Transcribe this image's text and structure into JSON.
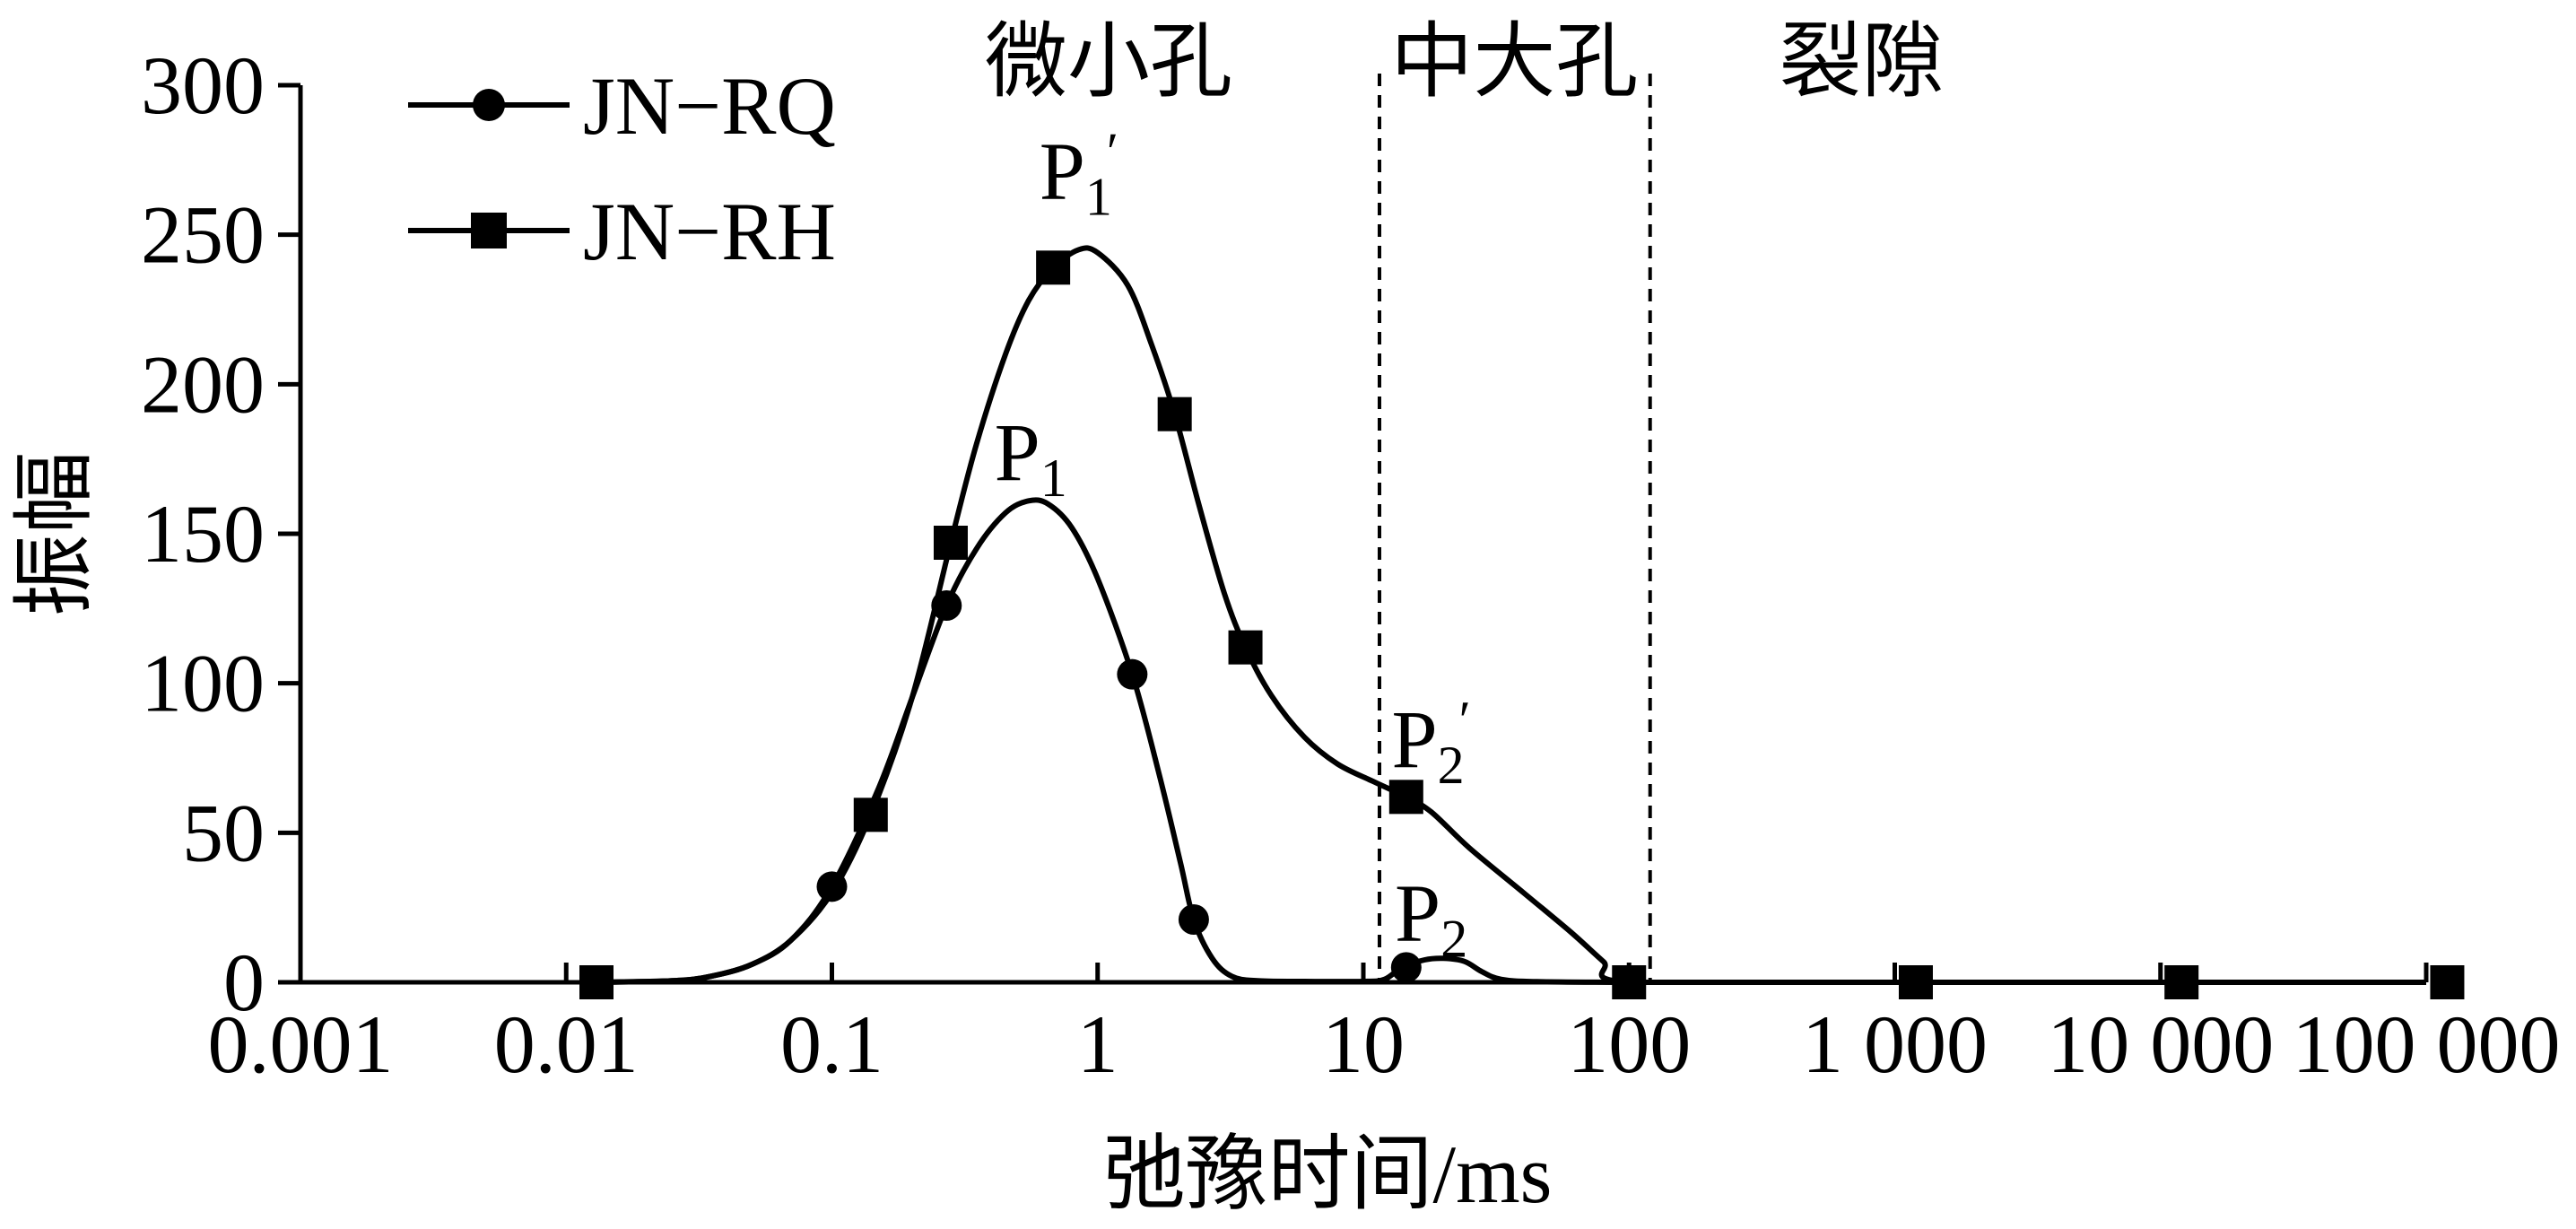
{
  "chart_data": {
    "type": "line",
    "xscale": "log",
    "xlim": [
      0.001,
      100000
    ],
    "ylim": [
      0,
      300
    ],
    "ylabel": "振幅",
    "xlabel": "弛豫时间/ms",
    "x_ticks": [
      {
        "value": 0.001,
        "label": "0.001"
      },
      {
        "value": 0.01,
        "label": "0.01"
      },
      {
        "value": 0.1,
        "label": "0.1"
      },
      {
        "value": 1,
        "label": "1"
      },
      {
        "value": 10,
        "label": "10"
      },
      {
        "value": 100,
        "label": "100"
      },
      {
        "value": 1000,
        "label": "1 000"
      },
      {
        "value": 10000,
        "label": "10 000"
      },
      {
        "value": 100000,
        "label": "100 000"
      }
    ],
    "y_ticks": [
      {
        "value": 0,
        "label": "0"
      },
      {
        "value": 50,
        "label": "50"
      },
      {
        "value": 100,
        "label": "100"
      },
      {
        "value": 150,
        "label": "150"
      },
      {
        "value": 200,
        "label": "200"
      },
      {
        "value": 250,
        "label": "250"
      },
      {
        "value": 300,
        "label": "300"
      }
    ],
    "region_dividers": [
      11.5,
      120
    ],
    "regions": [
      {
        "label": "微小孔",
        "x": 1.1
      },
      {
        "label": "中大孔",
        "x": 37
      },
      {
        "label": "裂隙",
        "x": 750
      }
    ],
    "series": [
      {
        "name": "JN-RQ",
        "marker": "circle",
        "curve": [
          [
            0.013,
            0
          ],
          [
            0.025,
            0.5
          ],
          [
            0.035,
            2
          ],
          [
            0.05,
            6
          ],
          [
            0.07,
            14
          ],
          [
            0.1,
            32
          ],
          [
            0.15,
            65
          ],
          [
            0.2,
            95
          ],
          [
            0.27,
            126
          ],
          [
            0.35,
            145
          ],
          [
            0.45,
            157
          ],
          [
            0.55,
            161
          ],
          [
            0.65,
            160
          ],
          [
            0.8,
            152
          ],
          [
            1,
            135
          ],
          [
            1.35,
            103
          ],
          [
            1.7,
            70
          ],
          [
            2.05,
            40
          ],
          [
            2.3,
            21
          ],
          [
            2.7,
            8
          ],
          [
            3.2,
            2
          ],
          [
            4,
            0.5
          ],
          [
            6,
            0.3
          ],
          [
            10,
            0.3
          ],
          [
            12,
            1
          ],
          [
            14,
            5
          ],
          [
            17,
            7.5
          ],
          [
            20,
            8
          ],
          [
            24,
            7
          ],
          [
            28,
            3.5
          ],
          [
            33,
            1
          ],
          [
            45,
            0.2
          ],
          [
            100,
            0
          ],
          [
            1000,
            0
          ],
          [
            10000,
            0
          ],
          [
            100000,
            0
          ]
        ],
        "markers": [
          [
            0.013,
            0
          ],
          [
            0.1,
            32
          ],
          [
            0.27,
            126
          ],
          [
            1.35,
            103
          ],
          [
            2.3,
            21
          ],
          [
            14.5,
            5
          ],
          [
            100,
            0
          ]
        ]
      },
      {
        "name": "JN-RH",
        "marker": "square",
        "curve": [
          [
            0.013,
            0
          ],
          [
            0.025,
            0.5
          ],
          [
            0.035,
            2
          ],
          [
            0.05,
            6
          ],
          [
            0.07,
            14
          ],
          [
            0.1,
            30
          ],
          [
            0.14,
            56
          ],
          [
            0.2,
            95
          ],
          [
            0.28,
            147
          ],
          [
            0.35,
            180
          ],
          [
            0.45,
            210
          ],
          [
            0.55,
            228
          ],
          [
            0.68,
            239
          ],
          [
            0.85,
            245
          ],
          [
            1,
            244
          ],
          [
            1.3,
            233
          ],
          [
            1.6,
            213
          ],
          [
            1.95,
            190
          ],
          [
            2.4,
            160
          ],
          [
            3,
            130
          ],
          [
            3.6,
            112
          ],
          [
            4.5,
            96
          ],
          [
            6,
            82
          ],
          [
            8,
            73
          ],
          [
            11,
            67
          ],
          [
            14.5,
            62
          ],
          [
            18,
            57
          ],
          [
            25,
            45
          ],
          [
            40,
            30
          ],
          [
            60,
            17
          ],
          [
            80,
            7
          ],
          [
            100,
            0
          ],
          [
            1000,
            0
          ],
          [
            10000,
            0
          ],
          [
            100000,
            0
          ]
        ],
        "markers": [
          [
            0.013,
            0
          ],
          [
            0.14,
            56
          ],
          [
            0.28,
            147
          ],
          [
            0.68,
            239
          ],
          [
            1.95,
            190
          ],
          [
            3.6,
            112
          ],
          [
            14.5,
            62
          ],
          [
            100,
            0
          ],
          [
            1200,
            0
          ],
          [
            12000,
            0
          ],
          [
            120000,
            0
          ]
        ]
      }
    ],
    "annotations": [
      {
        "base": "P",
        "sub": "1",
        "prime": true,
        "x": 0.85,
        "y": 262
      },
      {
        "base": "P",
        "sub": "1",
        "prime": false,
        "x": 0.56,
        "y": 168
      },
      {
        "base": "P",
        "sub": "2",
        "prime": true,
        "x": 18,
        "y": 72
      },
      {
        "base": "P",
        "sub": "2",
        "prime": false,
        "x": 18,
        "y": 14
      }
    ],
    "legend": {
      "position": "top-left",
      "entries": [
        {
          "label": "JN−RQ",
          "marker": "circle"
        },
        {
          "label": "JN−RH",
          "marker": "square"
        }
      ]
    },
    "grid": false
  }
}
